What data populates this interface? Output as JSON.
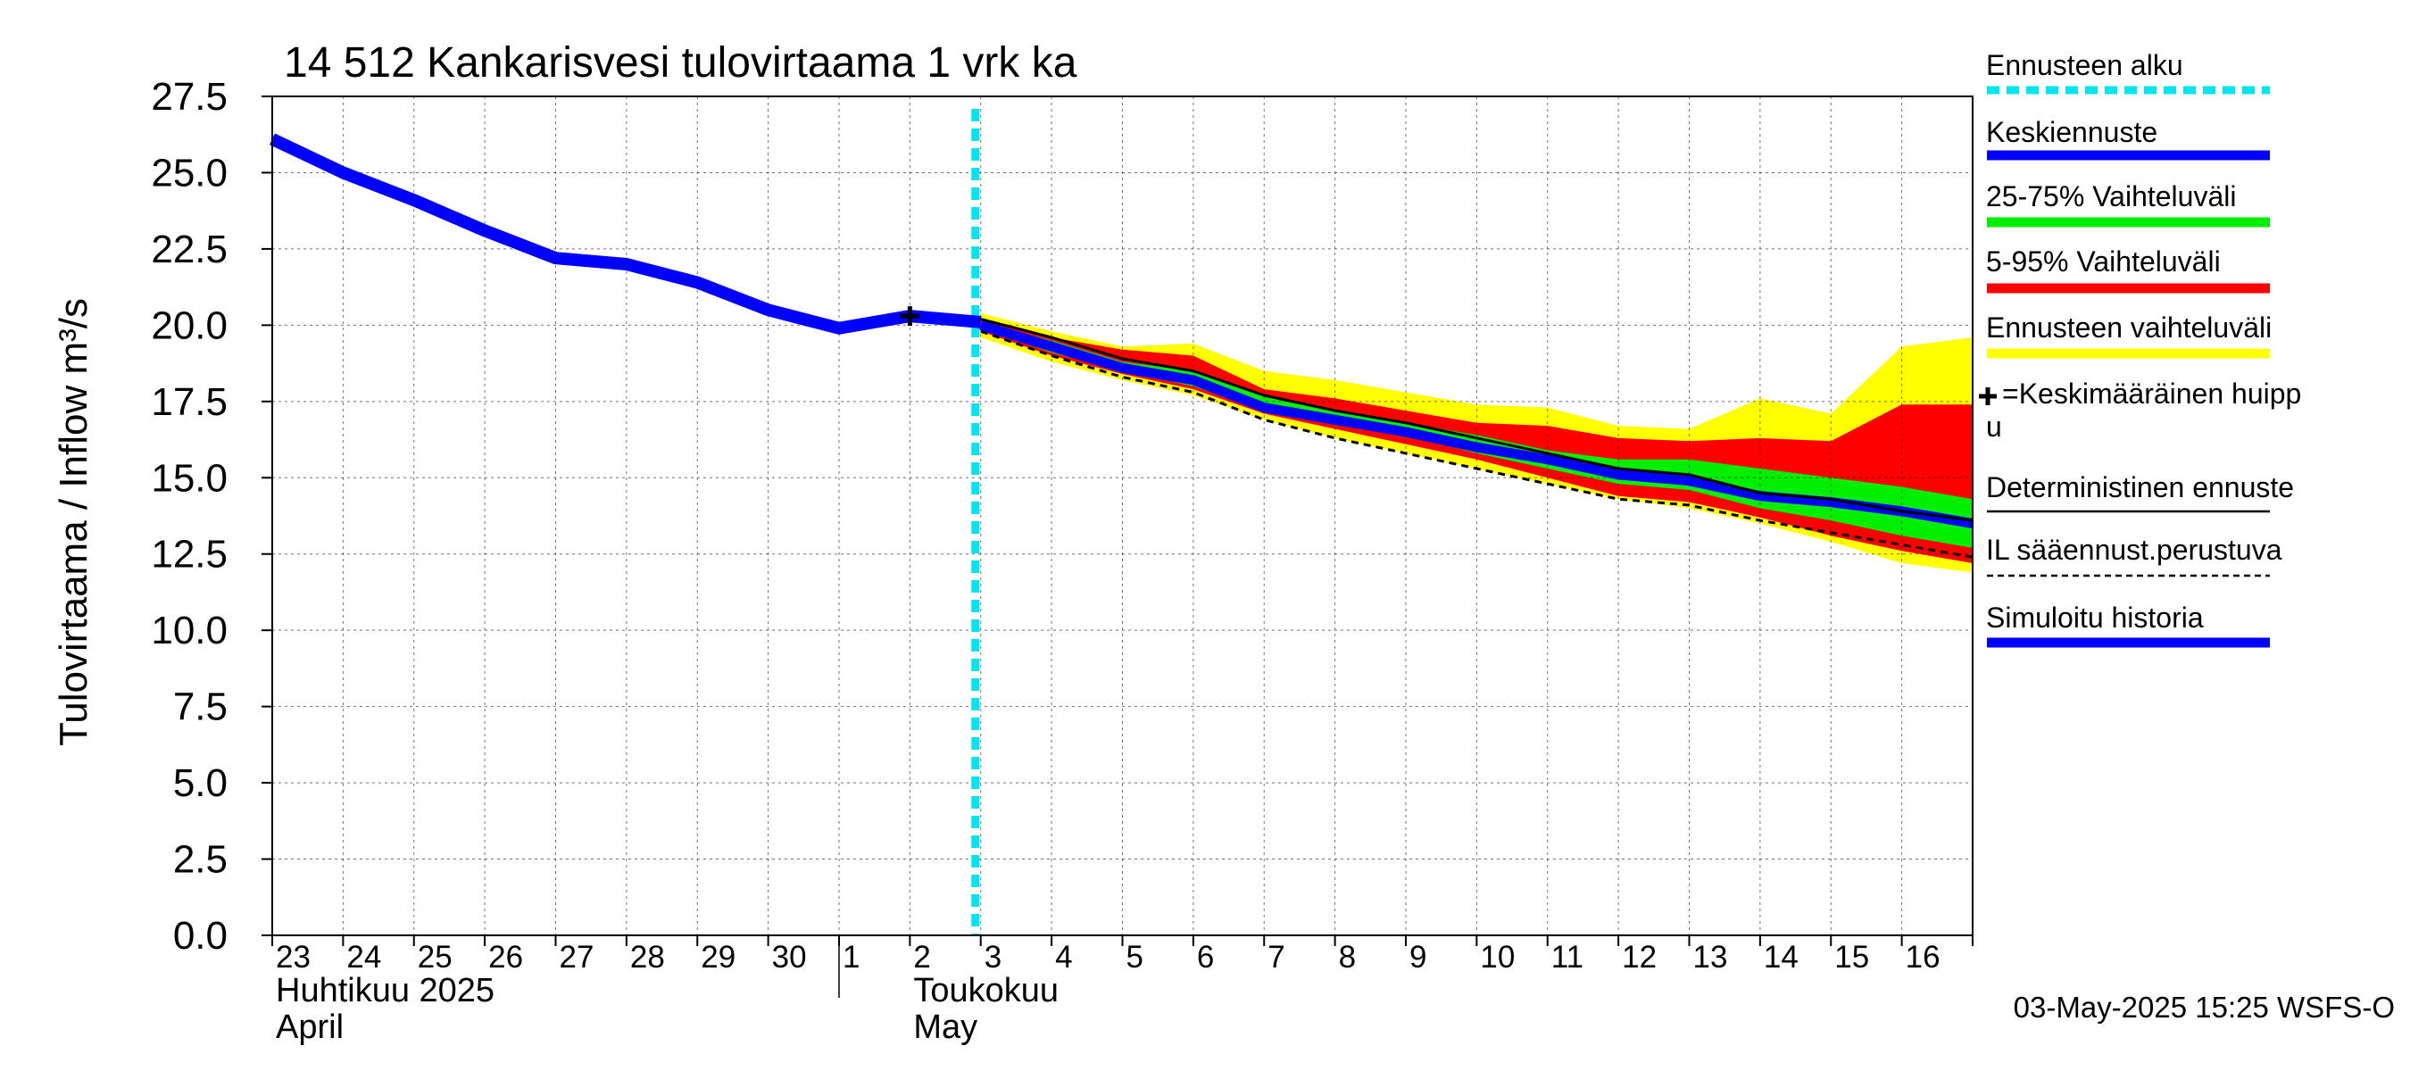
{
  "chart_data": {
    "type": "area",
    "title": "14 512 Kankarisvesi tulovirtaama 1 vrk ka",
    "ylabel": "Tulovirtaama / Inflow    m³/s",
    "ylim": [
      0,
      27.5
    ],
    "yticks": [
      "0.0",
      "2.5",
      "5.0",
      "7.5",
      "10.0",
      "12.5",
      "15.0",
      "17.5",
      "20.0",
      "22.5",
      "25.0",
      "27.5"
    ],
    "xlim": [
      0,
      24
    ],
    "x_day_labels": [
      "23",
      "24",
      "25",
      "26",
      "27",
      "28",
      "29",
      "30",
      "1",
      "2",
      "3",
      "4",
      "5",
      "6",
      "7",
      "8",
      "9",
      "10",
      "11",
      "12",
      "13",
      "14",
      "15",
      "16"
    ],
    "month_labels": [
      {
        "fi": "Huhtikuu  2025",
        "en": "April",
        "x": 0
      },
      {
        "fi": "Toukokuu",
        "en": "May",
        "x": 9
      }
    ],
    "month_divider_x": 8,
    "forecast_start_x": 10,
    "peak_marker": {
      "x": 9,
      "y": 20.3
    },
    "colors": {
      "forecast_start": "#00e5ee",
      "mean_forecast": "#0000ff",
      "band_25_75": "#00ee00",
      "band_5_95": "#ff0000",
      "band_full": "#ffff00",
      "deterministic": "#000000",
      "il_forecast": "#000000",
      "history": "#0000ff"
    },
    "series": [
      {
        "name": "Simuloitu historia",
        "x": [
          0,
          1,
          2,
          3,
          4,
          5,
          6,
          7,
          8,
          9,
          10
        ],
        "values": [
          26.1,
          25.0,
          24.1,
          23.1,
          22.2,
          22.0,
          21.4,
          20.5,
          19.9,
          20.3,
          20.1
        ]
      },
      {
        "name": "Keskiennuste",
        "x": [
          10,
          11,
          12,
          13,
          14,
          15,
          16,
          17,
          18,
          19,
          20,
          21,
          22,
          23,
          24
        ],
        "values": [
          20.0,
          19.3,
          18.6,
          18.2,
          17.3,
          16.9,
          16.5,
          16.0,
          15.6,
          15.1,
          14.9,
          14.4,
          14.2,
          13.9,
          13.5
        ]
      },
      {
        "name": "Deterministinen ennuste",
        "x": [
          10,
          11,
          12,
          13,
          14,
          15,
          16,
          17,
          18,
          19,
          20,
          21,
          22,
          23,
          24
        ],
        "values": [
          20.2,
          19.6,
          18.9,
          18.5,
          17.7,
          17.2,
          16.8,
          16.3,
          15.8,
          15.3,
          15.1,
          14.5,
          14.3,
          13.9,
          13.6
        ]
      },
      {
        "name": "IL sääennust.perustuva",
        "x": [
          10,
          11,
          12,
          13,
          14,
          15,
          16,
          17,
          18,
          19,
          20,
          21,
          22,
          23,
          24
        ],
        "values": [
          19.8,
          19.0,
          18.3,
          17.8,
          16.9,
          16.3,
          15.8,
          15.3,
          14.8,
          14.3,
          14.1,
          13.6,
          13.2,
          12.8,
          12.4
        ]
      }
    ],
    "bands": [
      {
        "name": "Ennusteen vaihteluväli",
        "x": [
          10,
          11,
          12,
          13,
          14,
          15,
          16,
          17,
          18,
          19,
          20,
          21,
          22,
          23,
          24
        ],
        "lower": [
          19.6,
          18.8,
          18.2,
          17.7,
          16.9,
          16.3,
          15.8,
          15.3,
          14.8,
          14.3,
          14.0,
          13.5,
          12.9,
          12.2,
          11.9
        ],
        "upper": [
          20.4,
          19.8,
          19.3,
          19.4,
          18.5,
          18.2,
          17.8,
          17.4,
          17.3,
          16.7,
          16.6,
          17.6,
          17.1,
          19.3,
          19.6
        ]
      },
      {
        "name": "5-95% Vaihteluväli",
        "x": [
          10,
          11,
          12,
          13,
          14,
          15,
          16,
          17,
          18,
          19,
          20,
          21,
          22,
          23,
          24
        ],
        "lower": [
          19.8,
          19.0,
          18.4,
          17.9,
          17.1,
          16.6,
          16.1,
          15.6,
          15.0,
          14.4,
          14.2,
          13.7,
          13.1,
          12.6,
          12.2
        ],
        "upper": [
          20.2,
          19.6,
          19.2,
          19.0,
          17.9,
          17.6,
          17.2,
          16.8,
          16.7,
          16.3,
          16.2,
          16.3,
          16.2,
          17.4,
          17.4
        ]
      },
      {
        "name": "25-75% Vaihteluväli",
        "x": [
          10,
          11,
          12,
          13,
          14,
          15,
          16,
          17,
          18,
          19,
          20,
          21,
          22,
          23,
          24
        ],
        "lower": [
          19.9,
          19.1,
          18.5,
          18.0,
          17.2,
          16.8,
          16.4,
          15.8,
          15.3,
          14.8,
          14.6,
          14.0,
          13.6,
          13.1,
          12.7
        ],
        "upper": [
          20.1,
          19.5,
          18.8,
          18.5,
          17.7,
          17.2,
          16.8,
          16.4,
          15.9,
          15.6,
          15.6,
          15.3,
          15.0,
          14.7,
          14.3
        ]
      }
    ],
    "legend": {
      "placement": "right",
      "entries": [
        {
          "label": "Ennusteen alku",
          "style": "dashed-cyan"
        },
        {
          "label": "Keskiennuste",
          "style": "thick-blue"
        },
        {
          "label": "25-75% Vaihteluväli",
          "style": "thick-green"
        },
        {
          "label": "5-95% Vaihteluväli",
          "style": "thick-red"
        },
        {
          "label": "Ennusteen vaihteluväli",
          "style": "thick-yellow"
        },
        {
          "label": "=Keskimääräinen huipp",
          "label2": "u",
          "style": "plus"
        },
        {
          "label": "Deterministinen ennuste",
          "style": "thin-black"
        },
        {
          "label": "IL sääennust.perustuva",
          "style": "dashed-black"
        },
        {
          "label": "Simuloitu historia",
          "style": "thick-blue"
        }
      ]
    },
    "timestamp": "03-May-2025 15:25 WSFS-O"
  }
}
